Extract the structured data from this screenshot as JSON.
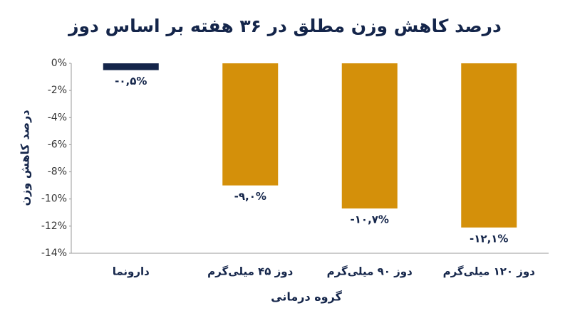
{
  "chart_data": {
    "type": "bar",
    "title": "درصد کاهش وزن مطلق در ۳۶ هفته بر اساس دوز",
    "x_label": "گروه درمانی",
    "y_label": "درصد کاهش وزن",
    "categories": [
      "دارونما",
      "دوز ۴۵ میلی‌گرم",
      "دوز ۹۰ میلی‌گرم",
      "دوز ۱۲۰ میلی‌گرم"
    ],
    "values": [
      -0.5,
      -9.0,
      -10.7,
      -12.1
    ],
    "value_labels": [
      "-۰,۵%",
      "-۹,۰%",
      "-۱۰,۷%",
      "-۱۲,۱%"
    ],
    "colors": [
      "#14254a",
      "#d4900a",
      "#d4900a",
      "#d4900a"
    ],
    "ylim": [
      -14,
      0
    ],
    "yticks": [
      {
        "value": 0,
        "label": "0%"
      },
      {
        "value": -2,
        "label": "-2%"
      },
      {
        "value": -4,
        "label": "-4%"
      },
      {
        "value": -6,
        "label": "-6%"
      },
      {
        "value": -8,
        "label": "-8%"
      },
      {
        "value": -10,
        "label": "-10%"
      },
      {
        "value": -12,
        "label": "-12%"
      },
      {
        "value": -14,
        "label": "-14%"
      }
    ]
  }
}
